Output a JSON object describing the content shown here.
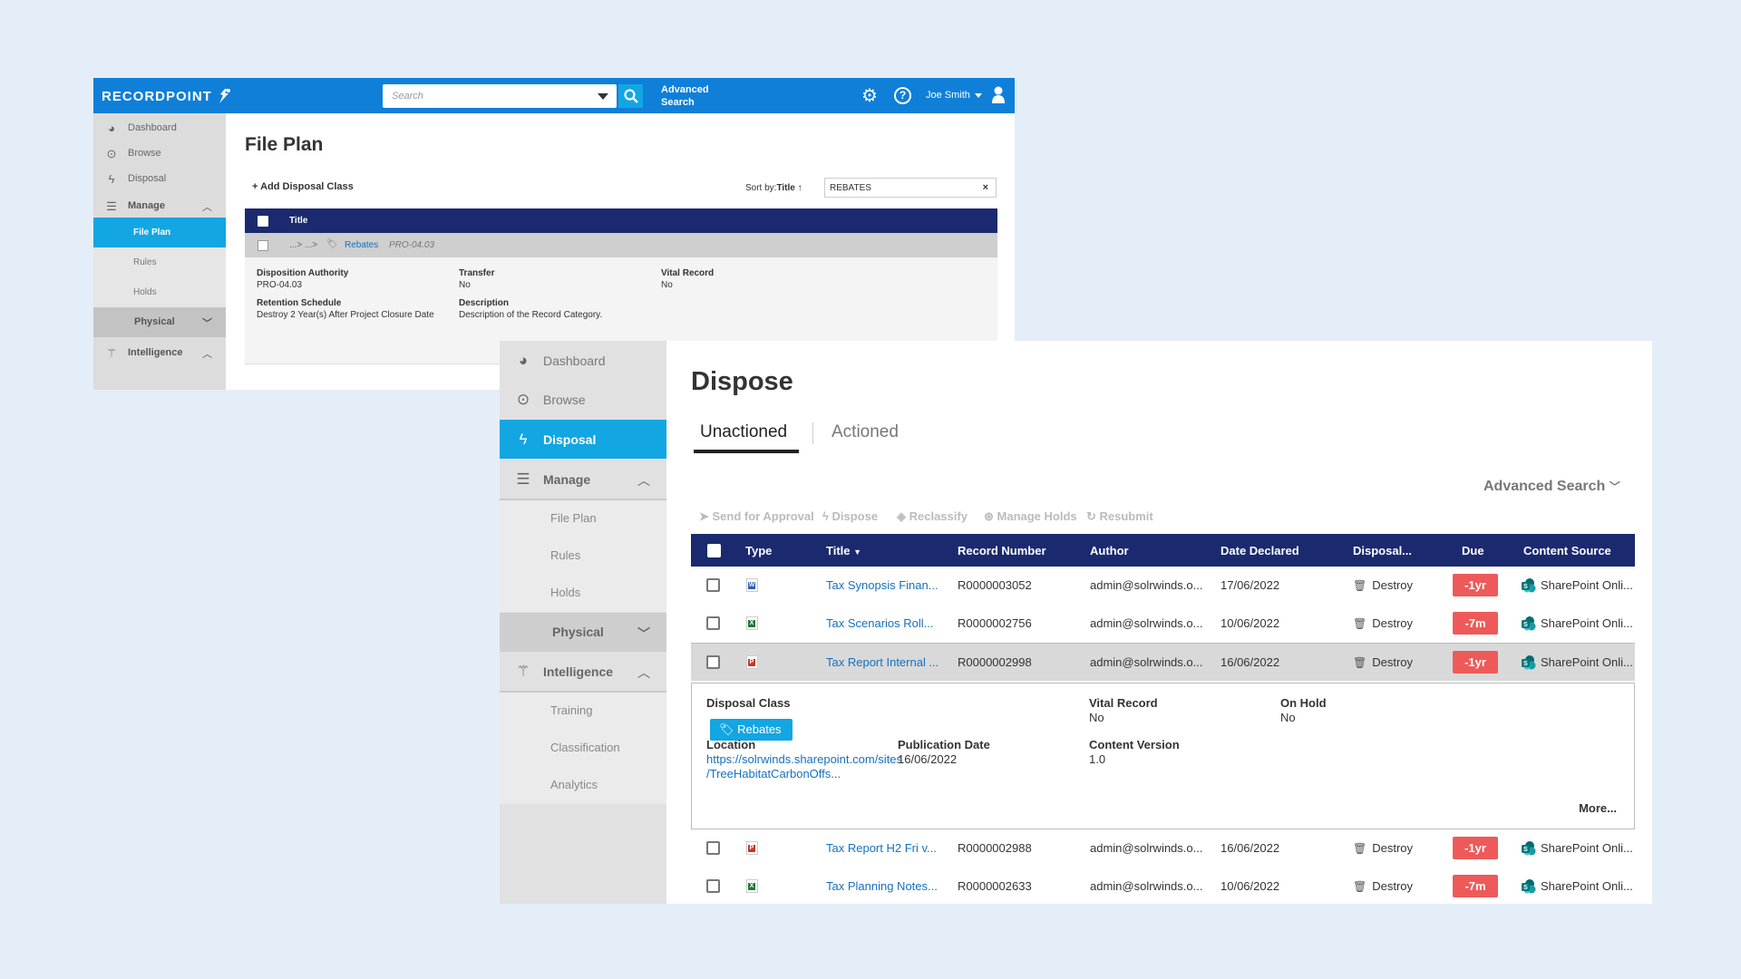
{
  "back_window": {
    "logo": "RECORDPOINT",
    "search_placeholder": "Search",
    "advanced_search": "Advanced Search",
    "user": "Joe Smith",
    "sidebar": {
      "dashboard": "Dashboard",
      "browse": "Browse",
      "disposal": "Disposal",
      "manage": "Manage",
      "file_plan": "File Plan",
      "rules": "Rules",
      "holds": "Holds",
      "physical": "Physical",
      "intelligence": "Intelligence"
    },
    "page_title": "File Plan",
    "add_button": "Add Disposal Class",
    "sort_label": "Sort by:",
    "sort_value": "Title ↑",
    "filter_value": "REBATES",
    "table_header": "Title",
    "row": {
      "path": "...> ...>",
      "link": "Rebates",
      "code": "PRO-04.03"
    },
    "detail": {
      "disposition_authority_label": "Disposition Authority",
      "disposition_authority_value": "PRO-04.03",
      "transfer_label": "Transfer",
      "transfer_value": "No",
      "vital_record_label": "Vital Record",
      "vital_record_value": "No",
      "retention_label": "Retention Schedule",
      "retention_value": "Destroy 2 Year(s) After Project Closure Date",
      "description_label": "Description",
      "description_value": "Description of the Record Category."
    }
  },
  "front_window": {
    "sidebar": {
      "dashboard": "Dashboard",
      "browse": "Browse",
      "disposal": "Disposal",
      "manage": "Manage",
      "file_plan": "File Plan",
      "rules": "Rules",
      "holds": "Holds",
      "physical": "Physical",
      "intelligence": "Intelligence",
      "training": "Training",
      "classification": "Classification",
      "analytics": "Analytics"
    },
    "page_title": "Dispose",
    "tabs": [
      "Unactioned",
      "Actioned"
    ],
    "advanced_search": "Advanced Search",
    "actions": [
      "Send for Approval",
      "Dispose",
      "Reclassify",
      "Manage Holds",
      "Resubmit"
    ],
    "columns": [
      "Type",
      "Title",
      "Record Number",
      "Author",
      "Date Declared",
      "Disposal...",
      "Due",
      "Content Source"
    ],
    "rows": [
      {
        "type": "word",
        "title": "Tax Synopsis Finan...",
        "record": "R0000003052",
        "author": "admin@solrwinds.o...",
        "date": "17/06/2022",
        "disposal": "Destroy",
        "due": "-1yr",
        "source": "SharePoint Onli..."
      },
      {
        "type": "excel",
        "title": "Tax Scenarios Roll...",
        "record": "R0000002756",
        "author": "admin@solrwinds.o...",
        "date": "10/06/2022",
        "disposal": "Destroy",
        "due": "-7m",
        "source": "SharePoint Onli..."
      },
      {
        "type": "powerpoint",
        "title": "Tax Report Internal ...",
        "record": "R0000002998",
        "author": "admin@solrwinds.o...",
        "date": "16/06/2022",
        "disposal": "Destroy",
        "due": "-1yr",
        "source": "SharePoint Onli..."
      },
      {
        "type": "powerpoint",
        "title": "Tax Report H2 Fri v...",
        "record": "R0000002988",
        "author": "admin@solrwinds.o...",
        "date": "16/06/2022",
        "disposal": "Destroy",
        "due": "-1yr",
        "source": "SharePoint Onli..."
      },
      {
        "type": "excel",
        "title": "Tax Planning Notes...",
        "record": "R0000002633",
        "author": "admin@solrwinds.o...",
        "date": "10/06/2022",
        "disposal": "Destroy",
        "due": "-7m",
        "source": "SharePoint Onli..."
      }
    ],
    "detail": {
      "disposal_class_label": "Disposal Class",
      "disposal_class_value": "Rebates",
      "vital_record_label": "Vital Record",
      "vital_record_value": "No",
      "on_hold_label": "On Hold",
      "on_hold_value": "No",
      "location_label": "Location",
      "location_line1": "https://solrwinds.sharepoint.com/sites",
      "location_line2": "/TreeHabitatCarbonOffs...",
      "publication_label": "Publication Date",
      "publication_value": "16/06/2022",
      "content_version_label": "Content Version",
      "content_version_value": "1.0",
      "more": "More..."
    }
  },
  "colors": {
    "top_bar": "#0f7fd8",
    "accent": "#12a6e3",
    "table_header": "#1b2a6e",
    "due_badge": "#ee5a5a",
    "background": "#e4eef8"
  }
}
